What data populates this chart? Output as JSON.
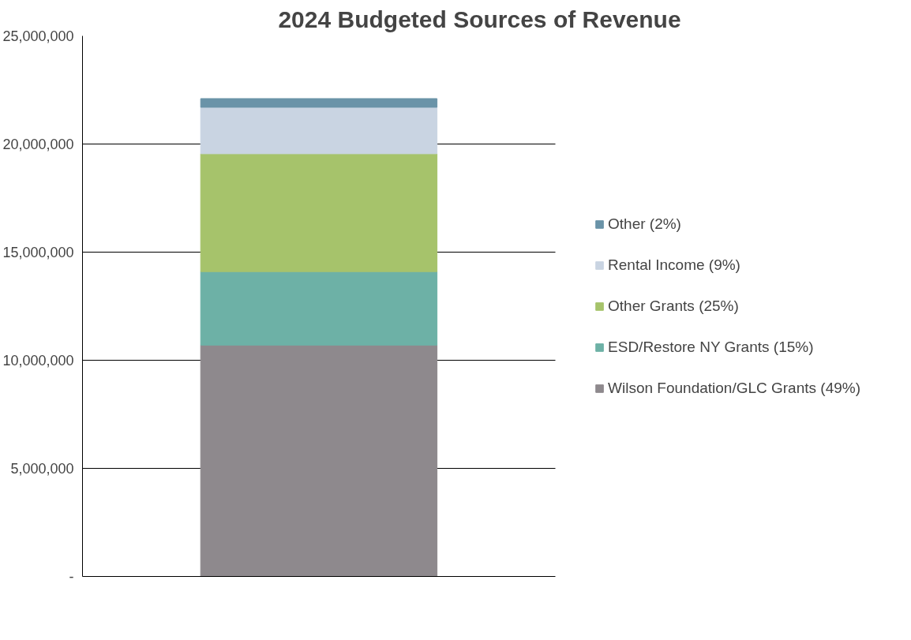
{
  "chart_data": {
    "type": "bar",
    "title": "2024 Budgeted Sources of Revenue",
    "categories": [
      null
    ],
    "stacked": true,
    "series": [
      {
        "name": "Wilson Foundation/GLC Grants (49%)",
        "color": "#8e898d",
        "values": [
          10700000
        ]
      },
      {
        "name": "ESD/Restore NY Grants (15%)",
        "color": "#6db1a6",
        "values": [
          3400000
        ]
      },
      {
        "name": "Other Grants (25%)",
        "color": "#a6c36b",
        "values": [
          5450000
        ]
      },
      {
        "name": "Rental Income (9%)",
        "color": "#c9d4e2",
        "values": [
          2150000
        ]
      },
      {
        "name": "Other (2%)",
        "color": "#6a93a8",
        "values": [
          400000
        ]
      }
    ],
    "ylim": [
      0,
      25000000
    ],
    "yticks": [
      {
        "value": 0,
        "label": "-"
      },
      {
        "value": 5000000,
        "label": "5,000,000"
      },
      {
        "value": 10000000,
        "label": "10,000,000"
      },
      {
        "value": 15000000,
        "label": "15,000,000"
      },
      {
        "value": 20000000,
        "label": "20,000,000"
      },
      {
        "value": 25000000,
        "label": "25,000,000"
      }
    ],
    "grid": "y",
    "legend": "right"
  }
}
